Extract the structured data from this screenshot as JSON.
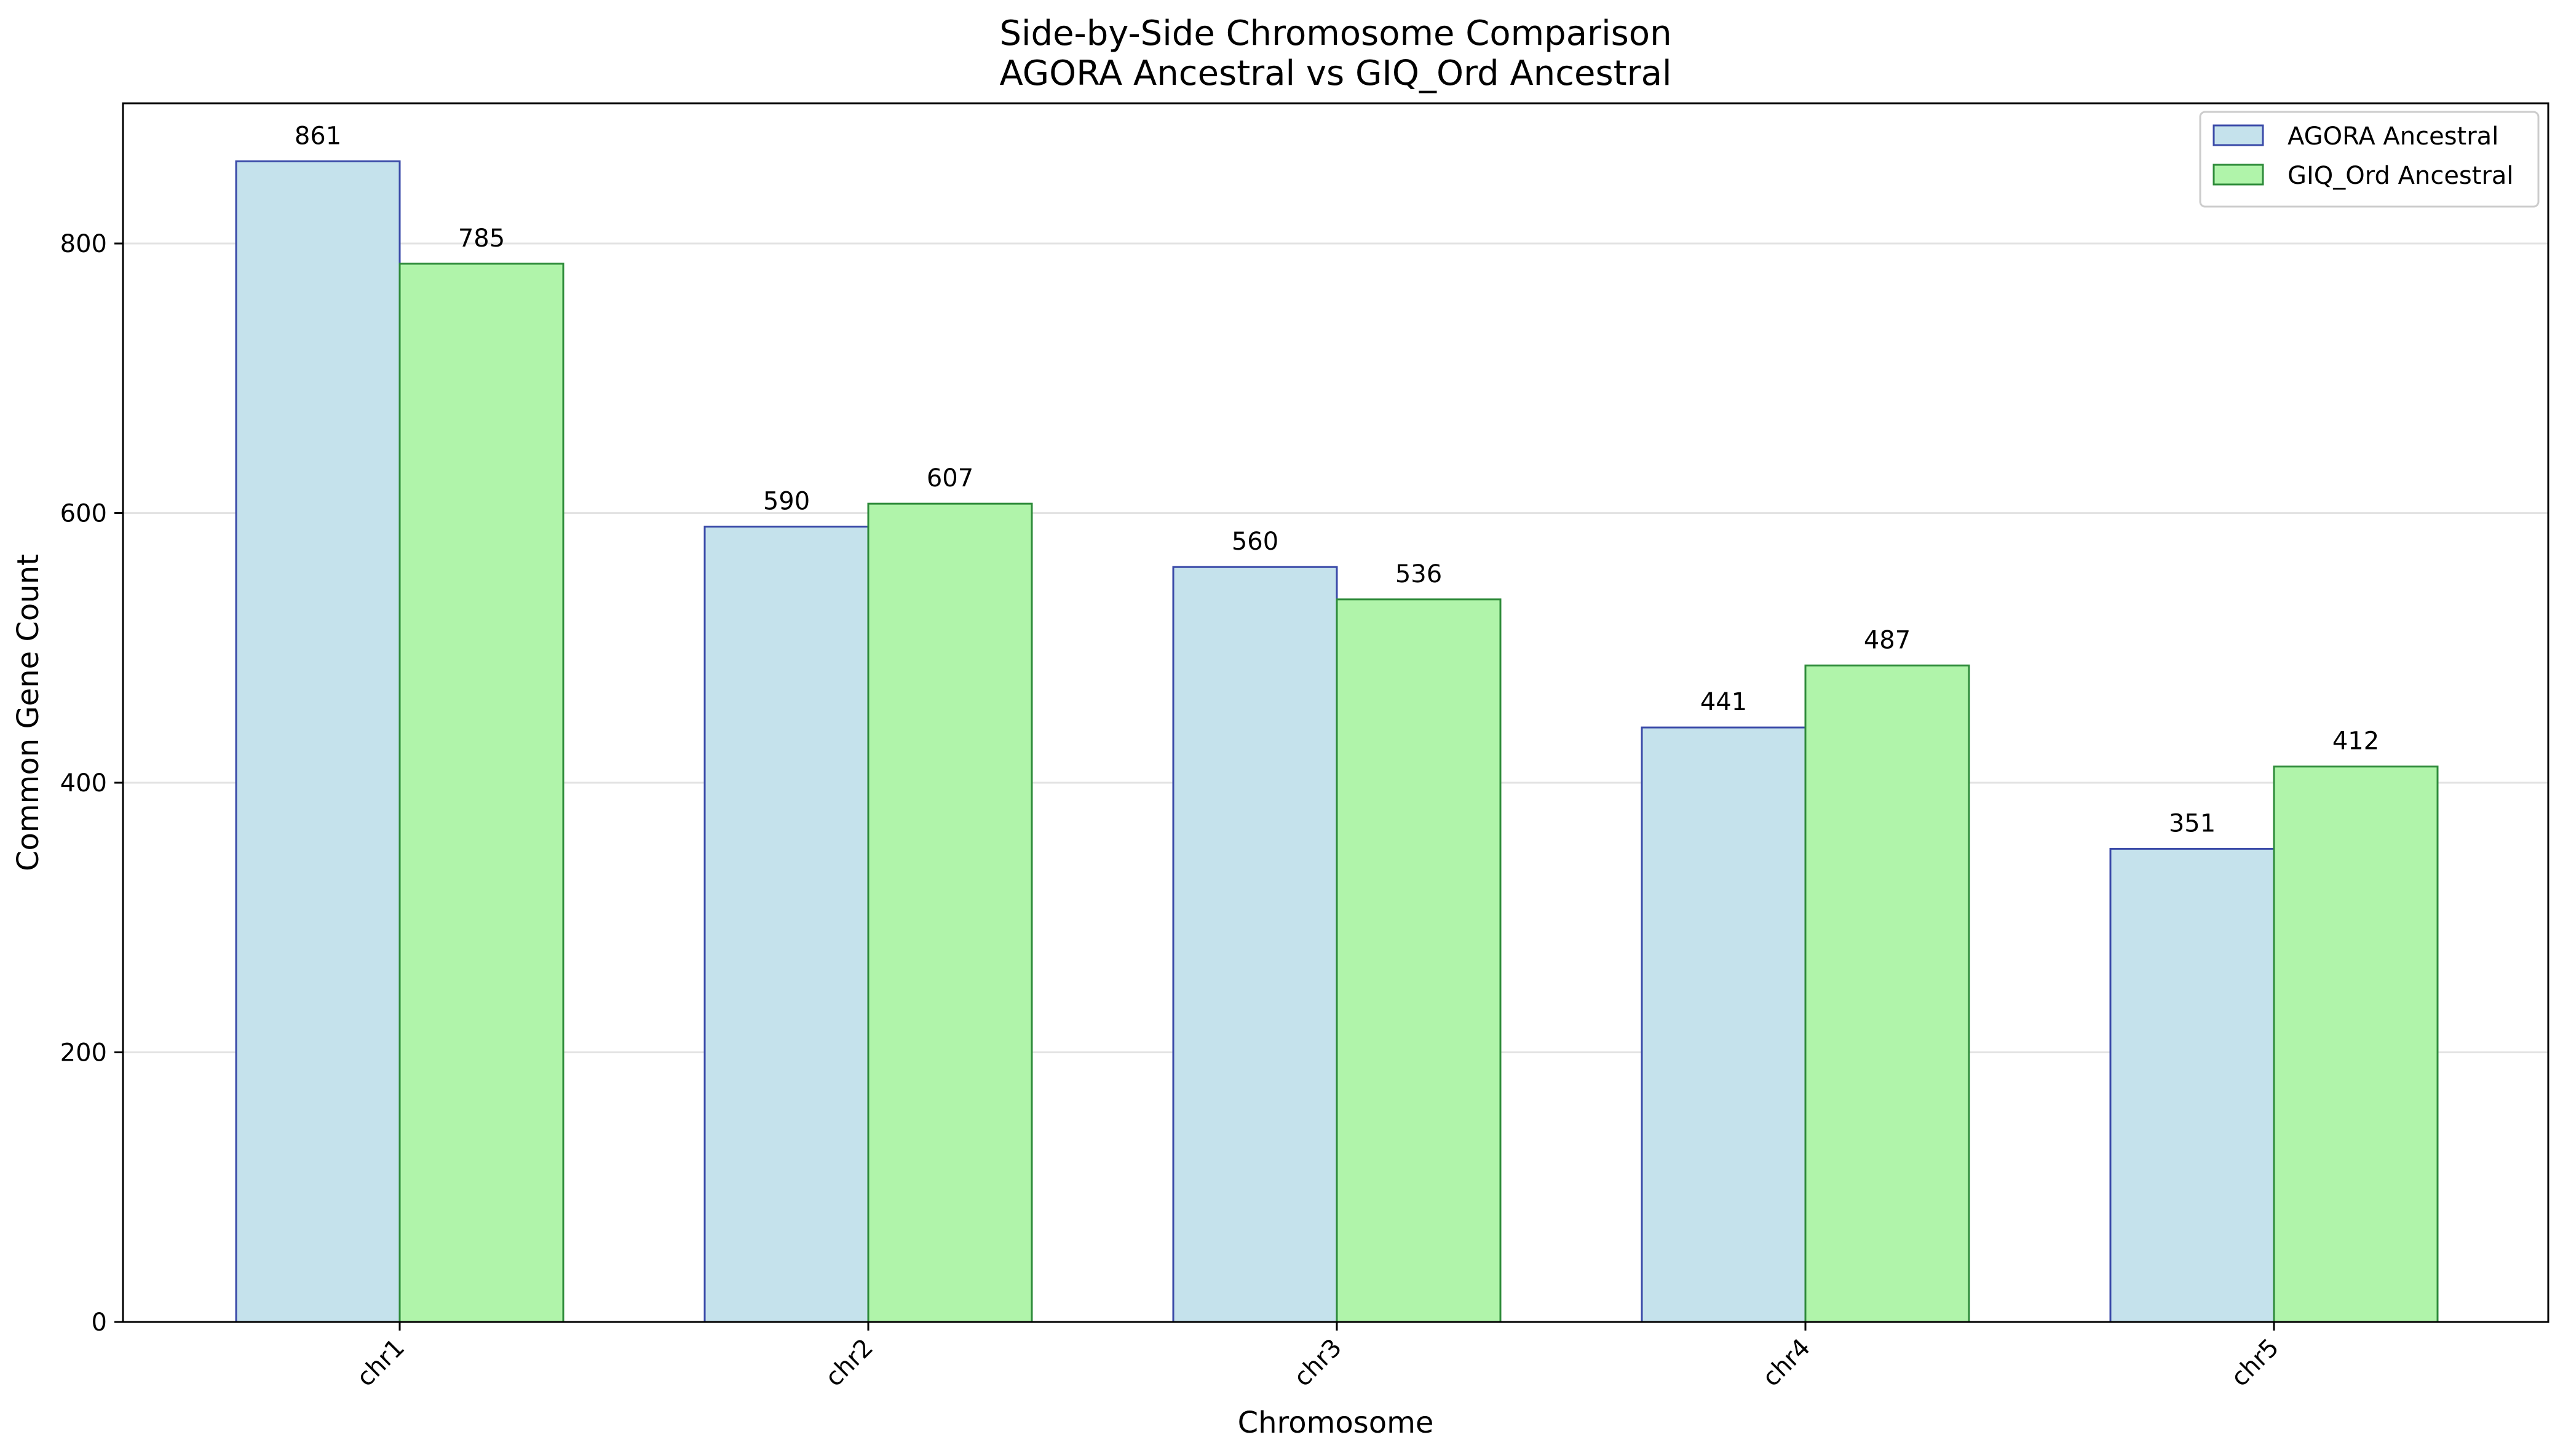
{
  "chart_data": {
    "type": "bar",
    "title_line1": "Side-by-Side Chromosome Comparison",
    "title_line2": "AGORA Ancestral vs GIQ_Ord Ancestral",
    "xlabel": "Chromosome",
    "ylabel": "Common Gene Count",
    "categories": [
      "chr1",
      "chr2",
      "chr3",
      "chr4",
      "chr5"
    ],
    "series": [
      {
        "name": "AGORA Ancestral",
        "values": [
          861,
          590,
          560,
          441,
          351
        ],
        "fill": "#c5e2ec",
        "stroke": "#3a4aa8"
      },
      {
        "name": "GIQ_Ord Ancestral",
        "values": [
          785,
          607,
          536,
          487,
          412
        ],
        "fill": "#b0f4aa",
        "stroke": "#2e8b3a"
      }
    ],
    "ylim": [
      0,
      904
    ],
    "yticks": [
      0,
      200,
      400,
      600,
      800
    ],
    "grid": "y",
    "legend_position": "top-right",
    "x_tick_rotation": -45
  }
}
